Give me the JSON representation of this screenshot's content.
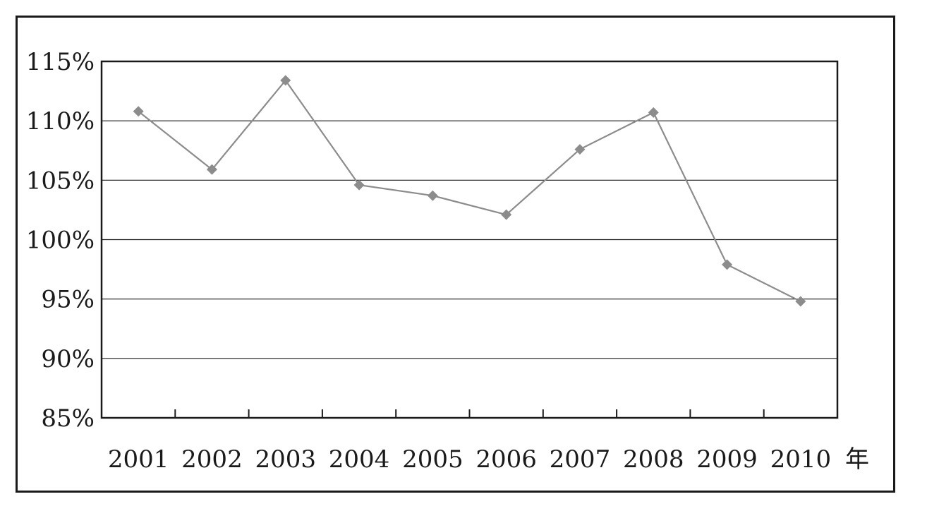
{
  "chart_data": {
    "type": "line",
    "title": "",
    "xlabel": "年",
    "ylabel": "",
    "categories": [
      "2001",
      "2002",
      "2003",
      "2004",
      "2005",
      "2006",
      "2007",
      "2008",
      "2009",
      "2010"
    ],
    "series": [
      {
        "values": [
          110.8,
          105.9,
          113.4,
          104.6,
          103.7,
          102.1,
          107.6,
          110.7,
          97.9,
          94.8
        ]
      }
    ],
    "ylim": [
      85,
      115
    ],
    "yticks": [
      85,
      90,
      95,
      100,
      105,
      110,
      115
    ],
    "ytick_labels": [
      "85%",
      "90%",
      "95%",
      "100%",
      "105%",
      "110%",
      "115%"
    ],
    "grid": true,
    "line_color": "#8c8c8c",
    "marker": "diamond"
  }
}
